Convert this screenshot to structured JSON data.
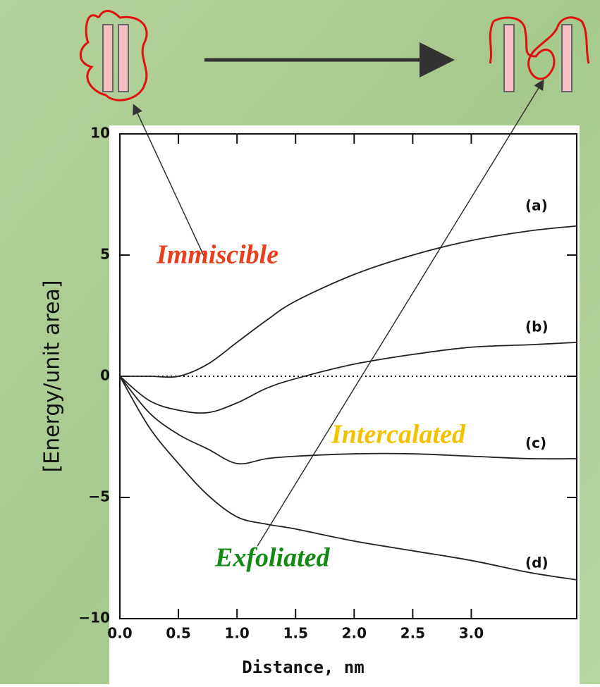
{
  "chart_data": {
    "type": "line",
    "ylabel": "[Energy/unit area]",
    "xlabel": "Distance, nm",
    "x": [
      0,
      0.25,
      0.5,
      0.75,
      1.0,
      1.25,
      1.5,
      2.0,
      2.5,
      3.0,
      3.5,
      3.9
    ],
    "series": [
      {
        "name": "(a)",
        "color": "#222222",
        "values": [
          0,
          0,
          0,
          0.5,
          1.4,
          2.3,
          3.1,
          4.2,
          5.0,
          5.6,
          6.0,
          6.2
        ]
      },
      {
        "name": "(b)",
        "color": "#222222",
        "values": [
          0,
          -1.0,
          -1.4,
          -1.5,
          -1.1,
          -0.5,
          -0.1,
          0.5,
          0.9,
          1.2,
          1.3,
          1.4
        ]
      },
      {
        "name": "(c)",
        "color": "#222222",
        "values": [
          0,
          -1.5,
          -2.4,
          -3.0,
          -3.6,
          -3.4,
          -3.3,
          -3.2,
          -3.2,
          -3.3,
          -3.4,
          -3.4
        ]
      },
      {
        "name": "(d)",
        "color": "#222222",
        "values": [
          0,
          -2.1,
          -3.6,
          -4.9,
          -5.8,
          -6.1,
          -6.3,
          -6.8,
          -7.2,
          -7.6,
          -8.1,
          -8.4
        ]
      }
    ],
    "xlim": [
      0,
      3.9
    ],
    "ylim": [
      -10,
      10
    ],
    "xticks": [
      {
        "value": 0,
        "label": "0.0"
      },
      {
        "value": 0.5,
        "label": "0.5"
      },
      {
        "value": 1,
        "label": "1.0"
      },
      {
        "value": 1.5,
        "label": "1.5"
      },
      {
        "value": 2,
        "label": "2.0"
      },
      {
        "value": 2.5,
        "label": "2.5"
      },
      {
        "value": 3,
        "label": "3.0"
      }
    ],
    "yticks": [
      {
        "value": -10,
        "label": "−10"
      },
      {
        "value": -5,
        "label": "−5"
      },
      0,
      5,
      10
    ],
    "zero_line": true,
    "annotations": [
      {
        "text": "Immiscible",
        "color": "#e8401c"
      },
      {
        "text": "Intercalated",
        "color": "#f2c200"
      },
      {
        "text": "Exfoliated",
        "color": "#138a13"
      }
    ]
  }
}
